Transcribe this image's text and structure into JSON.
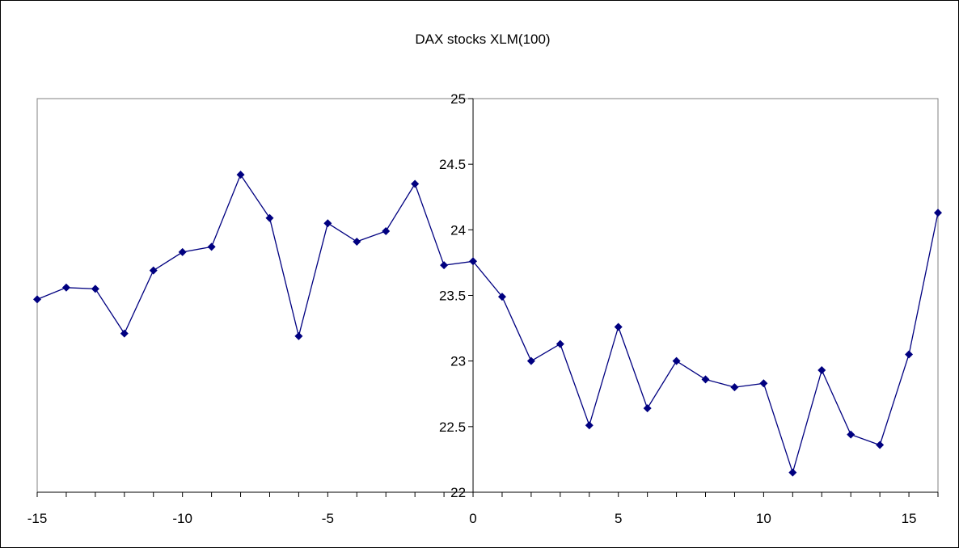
{
  "chart_data": {
    "type": "line",
    "title": "DAX stocks XLM(100)",
    "xlabel": "",
    "ylabel": "",
    "xlim": [
      -15,
      16
    ],
    "ylim": [
      22,
      25
    ],
    "xticks": [
      -15,
      -10,
      -5,
      0,
      5,
      10,
      15
    ],
    "yticks": [
      22,
      22.5,
      23,
      23.5,
      24,
      24.5,
      25
    ],
    "grid": false,
    "legend": "none",
    "series": [
      {
        "color": "#000080",
        "x": [
          -15,
          -14,
          -13,
          -12,
          -11,
          -10,
          -9,
          -8,
          -7,
          -6,
          -5,
          -4,
          -3,
          -2,
          -1,
          0,
          1,
          2,
          3,
          4,
          5,
          6,
          7,
          8,
          9,
          10,
          11,
          12,
          13,
          14,
          15,
          16
        ],
        "y": [
          23.47,
          23.56,
          23.55,
          23.21,
          23.69,
          23.83,
          23.87,
          24.42,
          24.09,
          23.19,
          24.05,
          23.91,
          23.99,
          24.35,
          23.73,
          23.76,
          23.49,
          23.0,
          23.13,
          22.51,
          23.26,
          22.64,
          23.0,
          22.86,
          22.8,
          22.83,
          22.15,
          22.93,
          22.44,
          22.36,
          23.05,
          24.13
        ]
      }
    ]
  }
}
